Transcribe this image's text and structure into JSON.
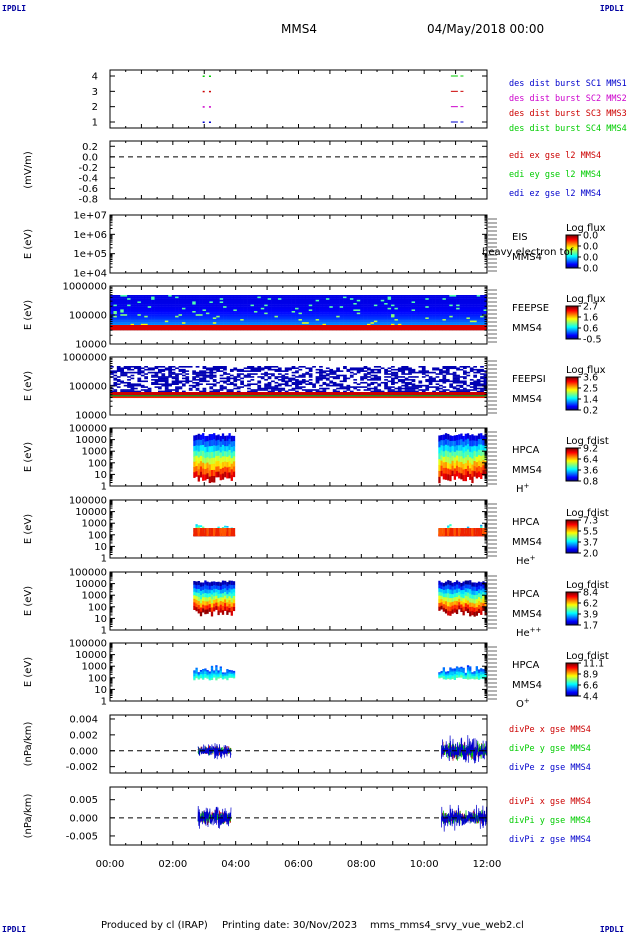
{
  "corner_label": "IPDLI",
  "header": {
    "spacecraft": "MMS4",
    "date": "04/May/2018 00:00"
  },
  "footer": {
    "produced_by": "Produced by cl (IRAP)",
    "printing_date": "Printing date: 30/Nov/2023",
    "filename": "mms_mms4_srvy_vue_web2.cl"
  },
  "chart_data": [
    {
      "type": "scatter",
      "name": "des dist burst",
      "xlim": [
        0,
        12
      ],
      "ylim": [
        0.5,
        4.5
      ],
      "ticks": [
        "4",
        "3",
        "2",
        "1"
      ],
      "legend": [
        {
          "text": "des dist burst SC1 MMS1",
          "color": "#0000cc"
        },
        {
          "text": "des dist burst SC2 MMS2",
          "color": "#cc00cc"
        },
        {
          "text": "des dist burst SC3 MMS3",
          "color": "#cc0000"
        },
        {
          "text": "des dist burst SC4 MMS4",
          "color": "#00cc00"
        }
      ],
      "marks": [
        {
          "sc": 4,
          "x": [
            2.95,
            3.15
          ],
          "color": "#00cc00"
        },
        {
          "sc": 4,
          "x": [
            10.85,
            11.25
          ],
          "color": "#00cc00"
        },
        {
          "sc": 3,
          "x": [
            2.95,
            3.15
          ],
          "color": "#cc0000"
        },
        {
          "sc": 3,
          "x": [
            10.85,
            11.25
          ],
          "color": "#cc0000"
        },
        {
          "sc": 2,
          "x": [
            2.95,
            3.15
          ],
          "color": "#cc00cc"
        },
        {
          "sc": 2,
          "x": [
            10.85,
            11.25
          ],
          "color": "#cc00cc"
        },
        {
          "sc": 1,
          "x": [
            2.95,
            3.15
          ],
          "color": "#0000cc"
        },
        {
          "sc": 1,
          "x": [
            10.85,
            11.25
          ],
          "color": "#0000cc"
        }
      ]
    },
    {
      "type": "line",
      "name": "edi",
      "ylabel": "(mV/m)",
      "ylim": [
        -0.8,
        0.3
      ],
      "ticks": [
        "0.2",
        "0.0",
        "-0.2",
        "-0.4",
        "-0.6",
        "-0.8"
      ],
      "zero_line": true,
      "legend": [
        {
          "text": "edi ex gse l2 MMS4",
          "color": "#cc0000"
        },
        {
          "text": "edi ey gse l2 MMS4",
          "color": "#00cc00"
        },
        {
          "text": "edi ez gse l2 MMS4",
          "color": "#0000cc"
        }
      ]
    },
    {
      "type": "heatmap",
      "name": "EIS",
      "ylabel": "E (eV)",
      "ticks": [
        "1e+07",
        "1e+06",
        "1e+05",
        "1e+04"
      ],
      "log": true,
      "labels": [
        "EIS",
        "MMS4"
      ],
      "overflow_label": "heavy electron tof",
      "colorbar": {
        "title": "Log flux",
        "ticks": [
          "0.0",
          "0.0",
          "0.0",
          "0.0"
        ]
      }
    },
    {
      "type": "heatmap",
      "name": "FEEPSE",
      "ylabel": "E (eV)",
      "ticks": [
        "1000000",
        "100000",
        "10000"
      ],
      "log": true,
      "labels": [
        "FEEPSE",
        "MMS4"
      ],
      "colorbar": {
        "title": "Log flux",
        "ticks": [
          "2.7",
          "1.6",
          "0.6",
          "-0.5"
        ]
      }
    },
    {
      "type": "heatmap",
      "name": "FEEPSI",
      "ylabel": "E (eV)",
      "ticks": [
        "1000000",
        "100000",
        "10000"
      ],
      "log": true,
      "labels": [
        "FEEPSI",
        "MMS4"
      ],
      "colorbar": {
        "title": "Log flux",
        "ticks": [
          "3.6",
          "2.5",
          "1.4",
          "0.2"
        ]
      }
    },
    {
      "type": "heatmap",
      "name": "HPCA H+",
      "ylabel": "E (eV)",
      "ticks": [
        "100000",
        "10000",
        "1000",
        "100",
        "10",
        "1"
      ],
      "log": true,
      "labels": [
        "HPCA",
        "MMS4"
      ],
      "species": "H",
      "species_sup": "+",
      "colorbar": {
        "title": "Log fdist",
        "ticks": [
          "9.2",
          "6.4",
          "3.6",
          "0.8"
        ]
      },
      "intervals": [
        [
          2.65,
          3.95
        ],
        [
          10.45,
          12.0
        ]
      ]
    },
    {
      "type": "heatmap",
      "name": "HPCA He+",
      "ylabel": "E (eV)",
      "ticks": [
        "100000",
        "10000",
        "1000",
        "100",
        "10",
        "1"
      ],
      "log": true,
      "labels": [
        "HPCA",
        "MMS4"
      ],
      "species": "He",
      "species_sup": "+",
      "colorbar": {
        "title": "Log fdist",
        "ticks": [
          "7.3",
          "5.5",
          "3.7",
          "2.0"
        ]
      },
      "intervals": [
        [
          2.65,
          3.95
        ],
        [
          10.45,
          12.0
        ]
      ]
    },
    {
      "type": "heatmap",
      "name": "HPCA He++",
      "ylabel": "E (eV)",
      "ticks": [
        "100000",
        "10000",
        "1000",
        "100",
        "10",
        "1"
      ],
      "log": true,
      "labels": [
        "HPCA",
        "MMS4"
      ],
      "species": "He",
      "species_sup": "++",
      "colorbar": {
        "title": "Log fdist",
        "ticks": [
          "8.4",
          "6.2",
          "3.9",
          "1.7"
        ]
      },
      "intervals": [
        [
          2.65,
          3.95
        ],
        [
          10.45,
          12.0
        ]
      ]
    },
    {
      "type": "heatmap",
      "name": "HPCA O+",
      "ylabel": "E (eV)",
      "ticks": [
        "100000",
        "10000",
        "1000",
        "100",
        "10",
        "1"
      ],
      "log": true,
      "labels": [
        "HPCA",
        "MMS4"
      ],
      "species": "O",
      "species_sup": "+",
      "colorbar": {
        "title": "Log fdist",
        "ticks": [
          "11.1",
          "8.9",
          "6.6",
          "4.4"
        ]
      },
      "intervals": [
        [
          2.65,
          3.95
        ],
        [
          10.45,
          12.0
        ]
      ]
    },
    {
      "type": "line",
      "name": "divPe",
      "ylabel": "(nPa/km)",
      "ylim": [
        -0.0028,
        0.0045
      ],
      "ticks": [
        "0.004",
        "0.002",
        "0.000",
        "-0.002"
      ],
      "tick_values": [
        0.004,
        0.002,
        0.0,
        -0.002
      ],
      "zero_line": true,
      "legend": [
        {
          "text": "divPe x gse MMS4",
          "color": "#cc0000"
        },
        {
          "text": "divPe y gse MMS4",
          "color": "#00cc00"
        },
        {
          "text": "divPe z gse MMS4",
          "color": "#0000cc"
        }
      ],
      "intervals": [
        [
          2.8,
          3.85
        ],
        [
          10.55,
          12.0
        ]
      ],
      "amplitude": [
        0.0012,
        0.0022
      ]
    },
    {
      "type": "line",
      "name": "divPi",
      "ylabel": "(nPa/km)",
      "ylim": [
        -0.0075,
        0.0085
      ],
      "ticks": [
        "0.005",
        "0.000",
        "-0.005"
      ],
      "tick_values": [
        0.005,
        0.0,
        -0.005
      ],
      "zero_line": true,
      "legend": [
        {
          "text": "divPi x gse MMS4",
          "color": "#cc0000"
        },
        {
          "text": "divPi y gse MMS4",
          "color": "#00cc00"
        },
        {
          "text": "divPi z gse MMS4",
          "color": "#0000cc"
        }
      ],
      "intervals": [
        [
          2.8,
          3.85
        ],
        [
          10.55,
          12.0
        ]
      ],
      "amplitude": [
        0.004,
        0.004
      ]
    }
  ],
  "x_axis": {
    "xlim": [
      0,
      12
    ],
    "ticks": [
      {
        "x": 0,
        "label": "00:00"
      },
      {
        "x": 2,
        "label": "02:00"
      },
      {
        "x": 4,
        "label": "04:00"
      },
      {
        "x": 6,
        "label": "06:00"
      },
      {
        "x": 8,
        "label": "08:00"
      },
      {
        "x": 10,
        "label": "10:00"
      },
      {
        "x": 12,
        "label": "12:00"
      }
    ]
  }
}
